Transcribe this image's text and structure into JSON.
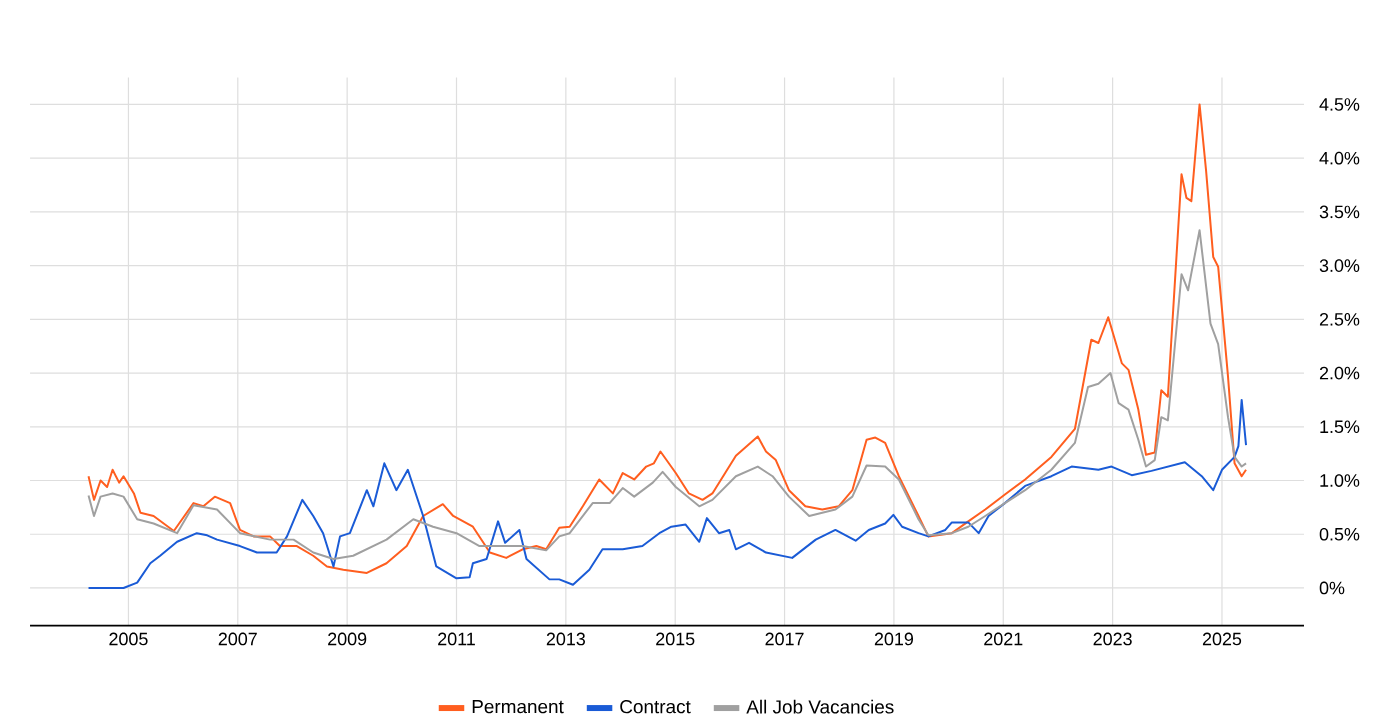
{
  "chart_data": {
    "type": "line",
    "xlim": [
      2003.2,
      2026.5
    ],
    "ylim": [
      -0.35,
      4.75
    ],
    "xticks": [
      2005,
      2007,
      2009,
      2011,
      2013,
      2015,
      2017,
      2019,
      2021,
      2023,
      2025
    ],
    "yticks": [
      {
        "value": 0,
        "label": "0%"
      },
      {
        "value": 0.5,
        "label": "0.5%"
      },
      {
        "value": 1,
        "label": "1.0%"
      },
      {
        "value": 1.5,
        "label": "1.5%"
      },
      {
        "value": 2,
        "label": "2.0%"
      },
      {
        "value": 2.5,
        "label": "2.5%"
      },
      {
        "value": 3,
        "label": "3.0%"
      },
      {
        "value": 3.5,
        "label": "3.5%"
      },
      {
        "value": 4,
        "label": "4.0%"
      },
      {
        "value": 4.5,
        "label": "4.5%"
      }
    ],
    "grid": true,
    "legend": "bottom",
    "series": [
      {
        "name": "Permanent",
        "color": "#ff5e1f",
        "x": [
          2004.27,
          2004.37,
          2004.49,
          2004.61,
          2004.71,
          2004.83,
          2004.91,
          2005.1,
          2005.22,
          2005.46,
          2005.83,
          2006.19,
          2006.37,
          2006.58,
          2006.86,
          2007.04,
          2007.29,
          2007.59,
          2007.77,
          2008.08,
          2008.38,
          2008.63,
          2008.93,
          2009.36,
          2009.72,
          2010.09,
          2010.39,
          2010.75,
          2010.94,
          2011.3,
          2011.61,
          2011.91,
          2012.21,
          2012.46,
          2012.64,
          2012.88,
          2013.07,
          2013.31,
          2013.61,
          2013.86,
          2014.04,
          2014.25,
          2014.47,
          2014.61,
          2014.73,
          2015.01,
          2015.25,
          2015.5,
          2015.68,
          2016.11,
          2016.51,
          2016.66,
          2016.84,
          2017.08,
          2017.38,
          2017.69,
          2017.99,
          2018.24,
          2018.5,
          2018.66,
          2018.84,
          2019.09,
          2019.45,
          2019.63,
          2020.06,
          2020.36,
          2020.67,
          2021.03,
          2021.4,
          2021.88,
          2022.31,
          2022.61,
          2022.74,
          2022.92,
          2023.17,
          2023.29,
          2023.47,
          2023.61,
          2023.77,
          2023.89,
          2024.01,
          2024.26,
          2024.35,
          2024.44,
          2024.59,
          2024.71,
          2024.84,
          2024.93,
          2025.11,
          2025.23,
          2025.36,
          2025.44
        ],
        "values": [
          1.04,
          0.82,
          1.0,
          0.94,
          1.1,
          0.98,
          1.04,
          0.88,
          0.7,
          0.67,
          0.53,
          0.79,
          0.76,
          0.85,
          0.79,
          0.54,
          0.48,
          0.48,
          0.39,
          0.39,
          0.3,
          0.2,
          0.17,
          0.14,
          0.23,
          0.39,
          0.67,
          0.78,
          0.67,
          0.57,
          0.33,
          0.28,
          0.36,
          0.39,
          0.36,
          0.56,
          0.57,
          0.76,
          1.01,
          0.88,
          1.07,
          1.01,
          1.13,
          1.16,
          1.27,
          1.07,
          0.88,
          0.82,
          0.88,
          1.23,
          1.41,
          1.27,
          1.19,
          0.91,
          0.76,
          0.73,
          0.76,
          0.91,
          1.38,
          1.4,
          1.35,
          1.04,
          0.67,
          0.48,
          0.51,
          0.62,
          0.73,
          0.87,
          1.01,
          1.22,
          1.48,
          2.31,
          2.28,
          2.52,
          2.09,
          2.03,
          1.66,
          1.24,
          1.26,
          1.84,
          1.78,
          3.85,
          3.63,
          3.6,
          4.5,
          3.88,
          3.08,
          2.99,
          1.97,
          1.16,
          1.04,
          1.1
        ]
      },
      {
        "name": "Contract",
        "color": "#1a5bd6",
        "x": [
          2004.27,
          2004.91,
          2005.16,
          2005.4,
          2005.58,
          2005.89,
          2006.25,
          2006.44,
          2006.62,
          2007.04,
          2007.35,
          2007.71,
          2007.9,
          2008.18,
          2008.38,
          2008.56,
          2008.75,
          2008.87,
          2009.05,
          2009.36,
          2009.48,
          2009.68,
          2009.9,
          2010.11,
          2010.39,
          2010.63,
          2011.0,
          2011.24,
          2011.3,
          2011.55,
          2011.76,
          2011.89,
          2012.15,
          2012.28,
          2012.7,
          2012.88,
          2013.13,
          2013.43,
          2013.67,
          2014.04,
          2014.4,
          2014.71,
          2014.93,
          2015.19,
          2015.44,
          2015.58,
          2015.8,
          2015.99,
          2016.11,
          2016.35,
          2016.66,
          2017.14,
          2017.57,
          2017.93,
          2018.3,
          2018.54,
          2018.84,
          2018.99,
          2019.15,
          2019.45,
          2019.63,
          2019.94,
          2020.06,
          2020.36,
          2020.55,
          2020.73,
          2021.03,
          2021.4,
          2021.88,
          2022.25,
          2022.74,
          2022.98,
          2023.35,
          2023.71,
          2024.32,
          2024.63,
          2024.84,
          2025.0,
          2025.23,
          2025.3,
          2025.36,
          2025.44
        ],
        "values": [
          0,
          0,
          0.05,
          0.23,
          0.3,
          0.43,
          0.51,
          0.49,
          0.45,
          0.39,
          0.33,
          0.33,
          0.48,
          0.82,
          0.67,
          0.51,
          0.2,
          0.48,
          0.51,
          0.91,
          0.76,
          1.16,
          0.91,
          1.1,
          0.67,
          0.2,
          0.09,
          0.1,
          0.23,
          0.27,
          0.62,
          0.42,
          0.54,
          0.27,
          0.08,
          0.08,
          0.03,
          0.17,
          0.36,
          0.36,
          0.39,
          0.51,
          0.57,
          0.59,
          0.43,
          0.65,
          0.51,
          0.54,
          0.36,
          0.42,
          0.33,
          0.28,
          0.45,
          0.54,
          0.44,
          0.54,
          0.6,
          0.68,
          0.57,
          0.51,
          0.48,
          0.54,
          0.61,
          0.61,
          0.51,
          0.67,
          0.79,
          0.95,
          1.04,
          1.13,
          1.1,
          1.13,
          1.05,
          1.09,
          1.17,
          1.04,
          0.91,
          1.1,
          1.22,
          1.32,
          1.75,
          1.33
        ]
      },
      {
        "name": "All Job Vacancies",
        "color": "#a0a0a0",
        "x": [
          2004.27,
          2004.37,
          2004.49,
          2004.71,
          2004.91,
          2005.16,
          2005.46,
          2005.89,
          2006.19,
          2006.62,
          2007.04,
          2007.59,
          2008.02,
          2008.38,
          2008.75,
          2009.11,
          2009.72,
          2010.21,
          2010.57,
          2011.0,
          2011.42,
          2011.79,
          2012.21,
          2012.64,
          2012.88,
          2013.07,
          2013.49,
          2013.8,
          2014.04,
          2014.25,
          2014.59,
          2014.77,
          2015.01,
          2015.44,
          2015.68,
          2016.11,
          2016.51,
          2016.78,
          2017.08,
          2017.45,
          2017.93,
          2018.24,
          2018.5,
          2018.84,
          2019.09,
          2019.45,
          2019.63,
          2020.06,
          2020.36,
          2020.67,
          2021.03,
          2021.4,
          2021.88,
          2022.31,
          2022.55,
          2022.74,
          2022.96,
          2023.11,
          2023.29,
          2023.47,
          2023.61,
          2023.77,
          2023.89,
          2024.01,
          2024.26,
          2024.38,
          2024.59,
          2024.79,
          2024.93,
          2025.11,
          2025.23,
          2025.36,
          2025.44
        ],
        "values": [
          0.86,
          0.67,
          0.85,
          0.88,
          0.85,
          0.64,
          0.6,
          0.51,
          0.77,
          0.73,
          0.51,
          0.45,
          0.45,
          0.33,
          0.27,
          0.3,
          0.45,
          0.64,
          0.57,
          0.51,
          0.39,
          0.39,
          0.39,
          0.35,
          0.48,
          0.51,
          0.79,
          0.79,
          0.93,
          0.85,
          0.98,
          1.08,
          0.94,
          0.76,
          0.82,
          1.04,
          1.13,
          1.04,
          0.85,
          0.67,
          0.73,
          0.85,
          1.14,
          1.13,
          1.01,
          0.64,
          0.49,
          0.51,
          0.57,
          0.67,
          0.79,
          0.91,
          1.1,
          1.35,
          1.87,
          1.9,
          2.0,
          1.72,
          1.66,
          1.38,
          1.13,
          1.19,
          1.59,
          1.56,
          2.92,
          2.77,
          3.33,
          2.46,
          2.27,
          1.59,
          1.22,
          1.13,
          1.16
        ]
      }
    ]
  }
}
